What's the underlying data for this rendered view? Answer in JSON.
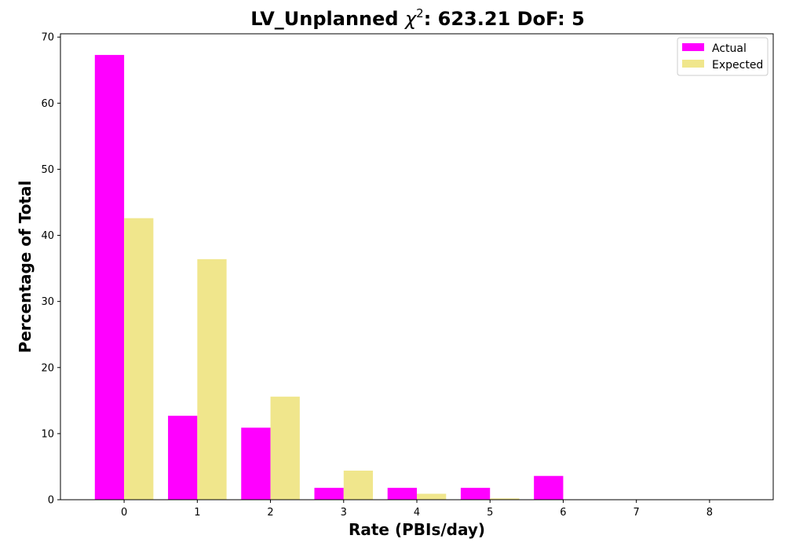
{
  "chart_data": {
    "type": "bar",
    "title": "LV_Unplanned χ²: 623.21 DoF: 5",
    "title_parts": {
      "prefix": "LV_Unplanned ",
      "chi": "χ",
      "sup": "2",
      "suffix": ": 623.21 DoF: 5"
    },
    "xlabel": "Rate (PBIs/day)",
    "ylabel": "Percentage of Total",
    "categories": [
      0,
      1,
      2,
      3,
      4,
      5,
      6,
      7,
      8
    ],
    "x_ticks": [
      "0",
      "1",
      "2",
      "3",
      "4",
      "5",
      "6",
      "7",
      "8"
    ],
    "y_ticks": [
      "0",
      "10",
      "20",
      "30",
      "40",
      "50",
      "60",
      "70"
    ],
    "ylim": [
      0,
      70.5
    ],
    "xlim": [
      -0.87,
      8.87
    ],
    "series": [
      {
        "name": "Actual",
        "color": "#ff00ff",
        "values": [
          67.3,
          12.7,
          10.9,
          1.8,
          1.8,
          1.8,
          3.6,
          0,
          0
        ]
      },
      {
        "name": "Expected",
        "color": "#f0e68c",
        "values": [
          42.6,
          36.4,
          15.6,
          4.4,
          0.9,
          0.2,
          0,
          0,
          0
        ]
      }
    ],
    "legend_position": "top-right",
    "grid": false
  }
}
